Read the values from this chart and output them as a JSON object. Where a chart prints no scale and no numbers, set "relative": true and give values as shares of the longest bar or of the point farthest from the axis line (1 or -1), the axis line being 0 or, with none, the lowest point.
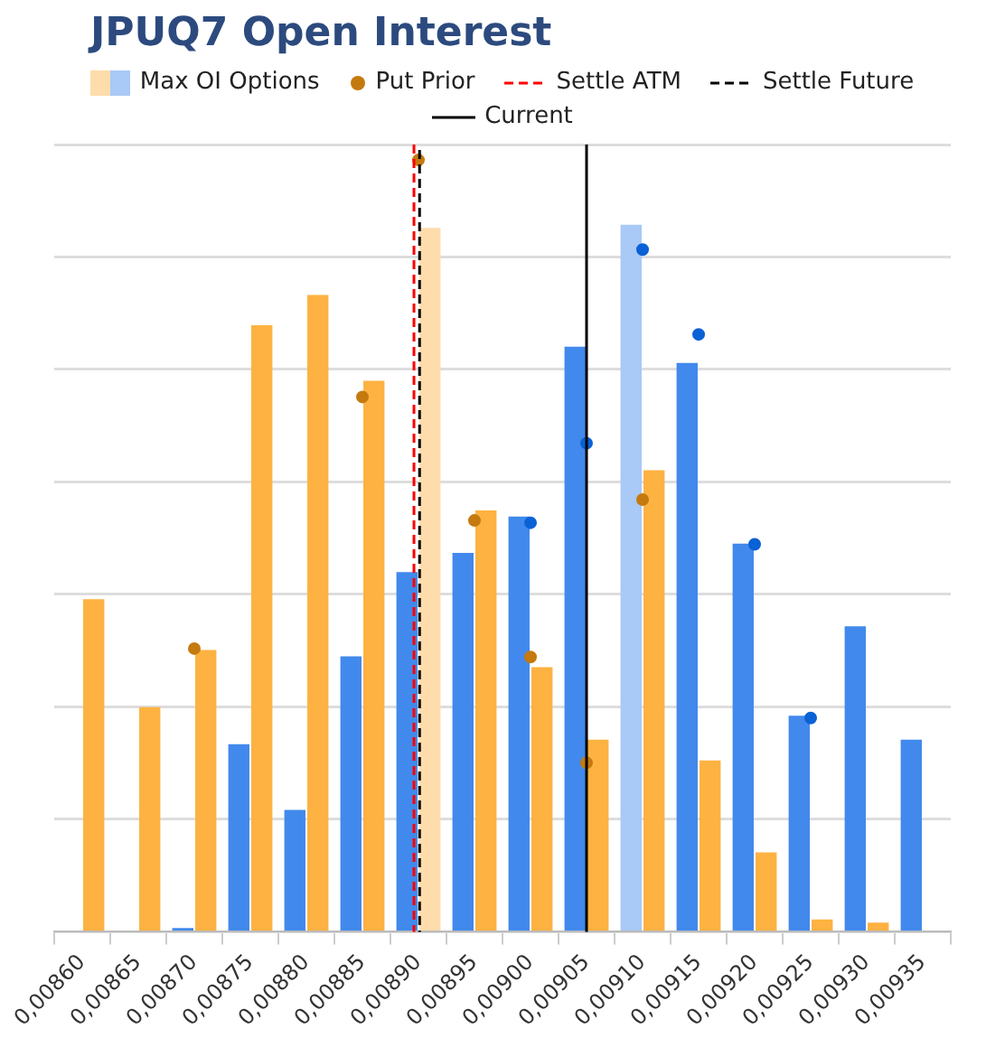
{
  "chart_data": {
    "type": "bar",
    "title": "JPUQ7 Open Interest",
    "relative": true,
    "grid": "y",
    "legend": "top",
    "marker": "circle",
    "x": [
      0.0086,
      0.00865,
      0.0087,
      0.00875,
      0.0088,
      0.00885,
      0.0089,
      0.00895,
      0.009,
      0.00905,
      0.0091,
      0.00915,
      0.0092,
      0.00925,
      0.0093,
      0.00935
    ],
    "xlim": [
      0.008575,
      0.009375
    ],
    "xticks": [
      {
        "value": 0.0086,
        "label": "0,00860"
      },
      {
        "value": 0.00865,
        "label": "0,00865"
      },
      {
        "value": 0.0087,
        "label": "0,00870"
      },
      {
        "value": 0.00875,
        "label": "0,00875"
      },
      {
        "value": 0.0088,
        "label": "0,00880"
      },
      {
        "value": 0.00885,
        "label": "0,00885"
      },
      {
        "value": 0.0089,
        "label": "0,00890"
      },
      {
        "value": 0.00895,
        "label": "0,00895"
      },
      {
        "value": 0.009,
        "label": "0,00900"
      },
      {
        "value": 0.00905,
        "label": "0,00905"
      },
      {
        "value": 0.0091,
        "label": "0,00910"
      },
      {
        "value": 0.00915,
        "label": "0,00915"
      },
      {
        "value": 0.0092,
        "label": "0,00920"
      },
      {
        "value": 0.00925,
        "label": "0,00925"
      },
      {
        "value": 0.0093,
        "label": "0,00930"
      },
      {
        "value": 0.00935,
        "label": "0,00935"
      }
    ],
    "series": [
      {
        "color": "#4189ec",
        "values": [
          null,
          0,
          0.005,
          0.243,
          0.158,
          0.357,
          0.466,
          0.491,
          0.538,
          0.758,
          null,
          0.737,
          0.503,
          0.28,
          0.396,
          0.249
        ]
      },
      {
        "color": "#fdb241",
        "values": [
          0.431,
          0.291,
          0.365,
          0.786,
          0.825,
          0.714,
          null,
          0.546,
          0.343,
          0.249,
          0.598,
          0.222,
          0.103,
          0.016,
          0.012,
          null
        ]
      },
      {
        "name": "Max OI Options",
        "type": "bar",
        "colors": [
          null,
          null,
          null,
          null,
          null,
          null,
          "#fedcab",
          null,
          null,
          null,
          "#a9c9f6",
          null,
          null,
          null,
          null,
          null
        ],
        "values": [
          null,
          null,
          null,
          null,
          null,
          null,
          0.912,
          null,
          null,
          null,
          0.916,
          null,
          null,
          null,
          null,
          null
        ]
      },
      {
        "type": "scatter",
        "color": "#0a62d6",
        "values": [
          null,
          null,
          null,
          null,
          null,
          null,
          null,
          null,
          0.53,
          0.633,
          0.884,
          0.774,
          0.502,
          0.277,
          null,
          null
        ]
      },
      {
        "name": "Put Prior",
        "type": "scatter",
        "color": "#c47a0f",
        "values": [
          null,
          null,
          0.367,
          null,
          null,
          0.693,
          1,
          0.533,
          0.356,
          0.219,
          0.56,
          null,
          null,
          null,
          null,
          null
        ]
      }
    ],
    "ref_lines": [
      {
        "axis": "x",
        "value": 0.008896,
        "label": "Settle ATM",
        "color": "#ff0000",
        "line_style": "dashed"
      },
      {
        "axis": "x",
        "value": 0.008901,
        "label": "Settle Future",
        "color": "#000000",
        "line_style": "dashed"
      },
      {
        "axis": "x",
        "value": 0.00905,
        "label": "Current",
        "color": "#000000",
        "line_style": "solid"
      }
    ]
  }
}
